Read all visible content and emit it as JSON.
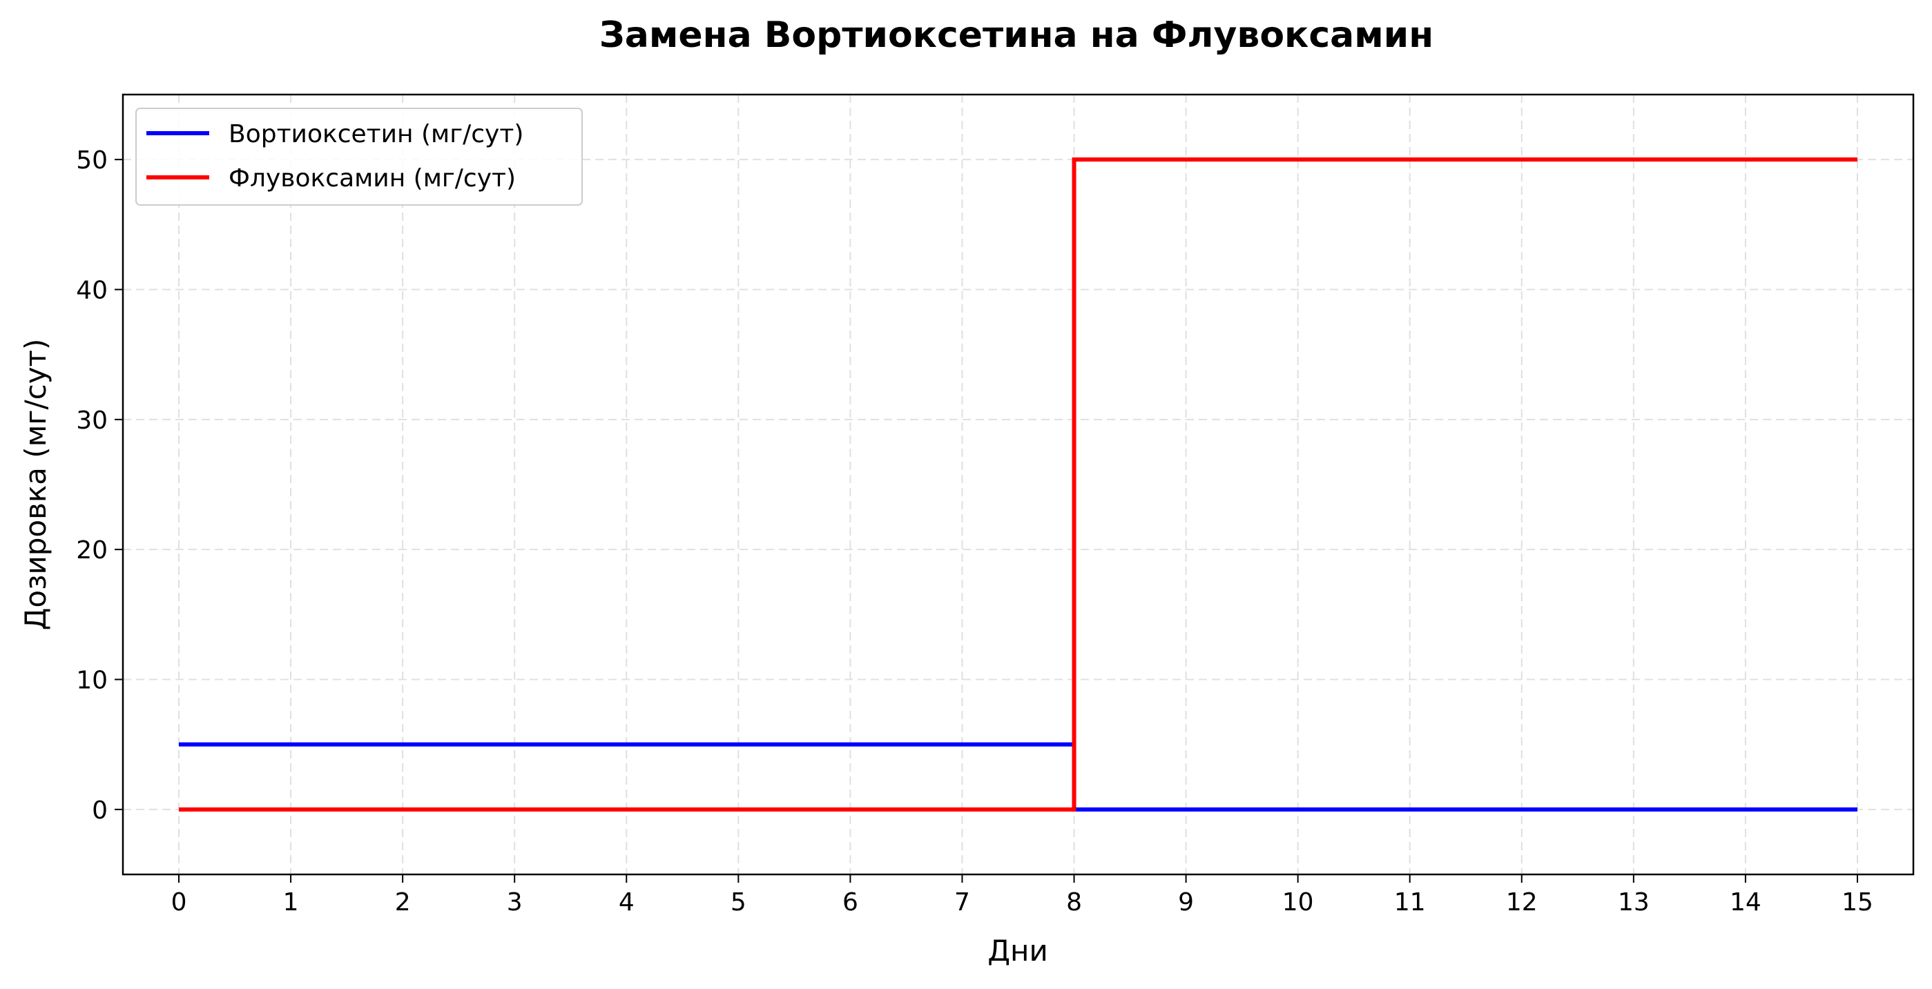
{
  "chart_data": {
    "type": "line",
    "step": "post",
    "title": "Замена Вортиоксетина на Флувоксамин",
    "xlabel": "Дни",
    "ylabel": "Дозировка (мг/сут)",
    "xlim": [
      -0.5,
      15.5
    ],
    "ylim": [
      -5,
      55
    ],
    "xticks": [
      0,
      1,
      2,
      3,
      4,
      5,
      6,
      7,
      8,
      9,
      10,
      11,
      12,
      13,
      14,
      15
    ],
    "yticks": [
      0,
      10,
      20,
      30,
      40,
      50
    ],
    "grid": true,
    "legend_position": "top-left",
    "series": [
      {
        "name": "Вортиоксетин (мг/сут)",
        "color": "#0000ff",
        "x": [
          0,
          1,
          2,
          3,
          4,
          5,
          6,
          7,
          8,
          9,
          10,
          11,
          12,
          13,
          14,
          15
        ],
        "y": [
          5,
          5,
          5,
          5,
          5,
          5,
          5,
          5,
          0,
          0,
          0,
          0,
          0,
          0,
          0,
          0
        ]
      },
      {
        "name": "Флувоксамин (мг/сут)",
        "color": "#ff0000",
        "x": [
          0,
          1,
          2,
          3,
          4,
          5,
          6,
          7,
          8,
          9,
          10,
          11,
          12,
          13,
          14,
          15
        ],
        "y": [
          0,
          0,
          0,
          0,
          0,
          0,
          0,
          0,
          50,
          50,
          50,
          50,
          50,
          50,
          50,
          50
        ]
      }
    ]
  }
}
